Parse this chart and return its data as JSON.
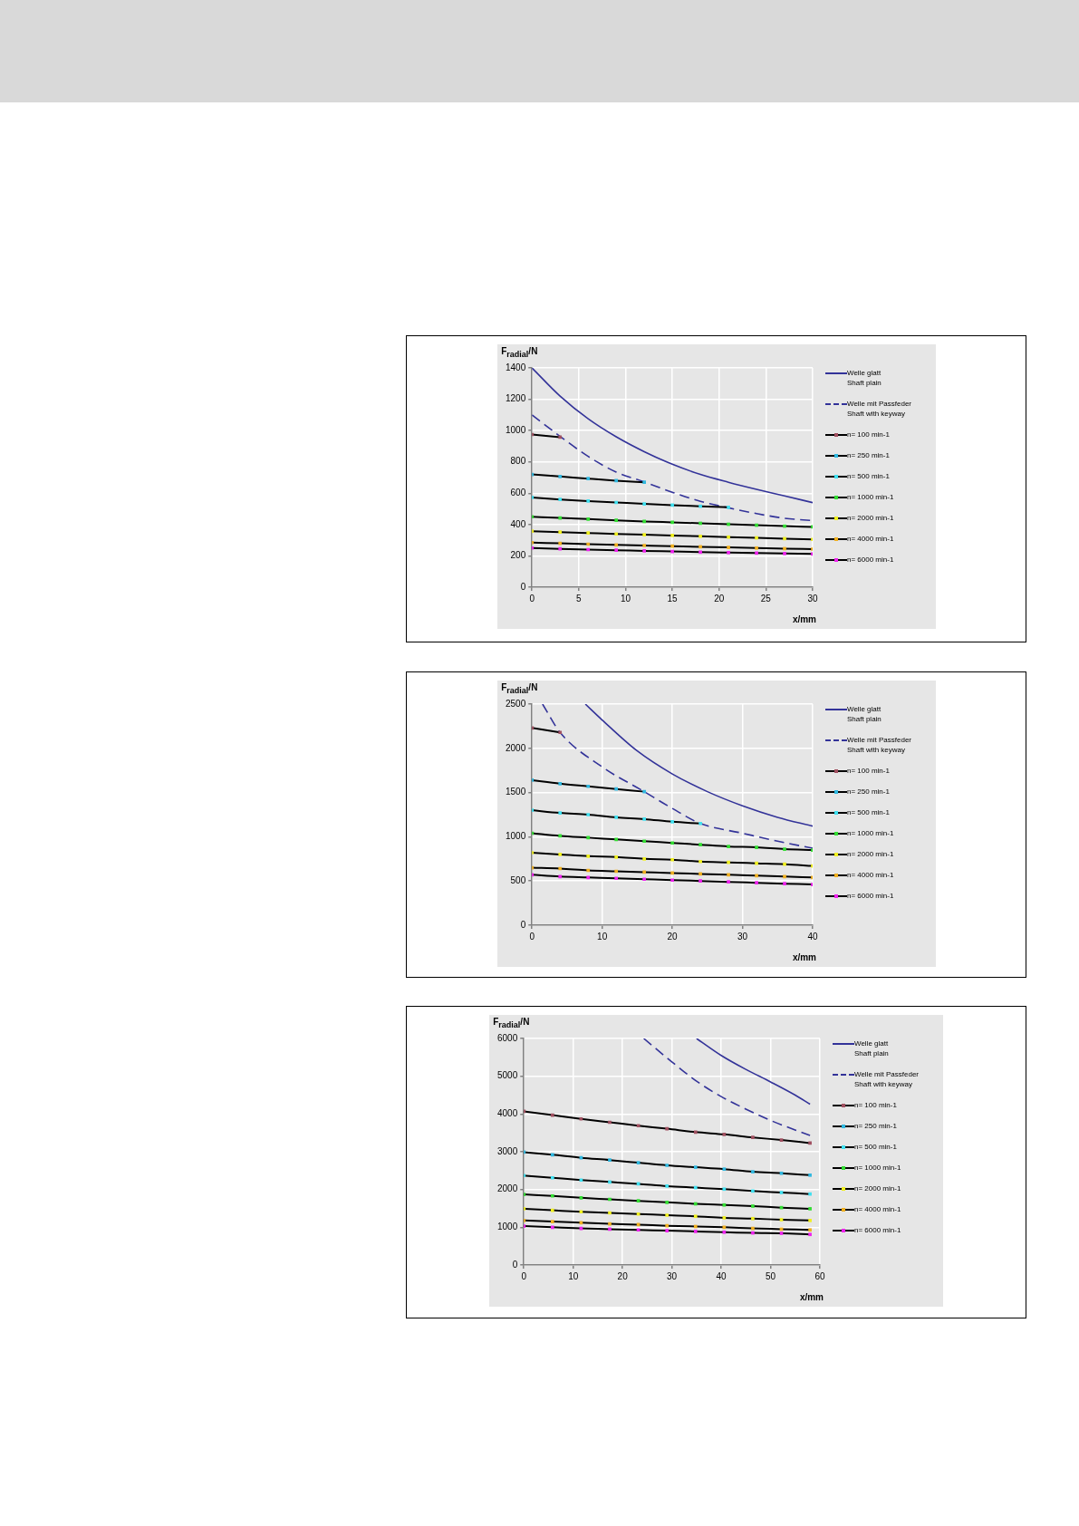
{
  "chart_data": [
    {
      "type": "line",
      "xlabel": "x/mm",
      "ylabel": "F$_{radial}$/N",
      "xlim": [
        0,
        30
      ],
      "ylim": [
        0,
        1400
      ],
      "xticks": [
        0,
        5,
        10,
        15,
        20,
        25,
        30
      ],
      "yticks": [
        0,
        200,
        400,
        600,
        800,
        1000,
        1200,
        1400
      ],
      "grid": true,
      "legend": "right",
      "series": [
        {
          "name": "Welle glatt\nShaft plain",
          "color": "#333399",
          "line_style": "solid",
          "marker": "none",
          "x": [
            0,
            3,
            6,
            9,
            12,
            15,
            18,
            21,
            24,
            27,
            30
          ],
          "values": [
            1400,
            1220,
            1075,
            960,
            865,
            785,
            720,
            670,
            625,
            583,
            540
          ]
        },
        {
          "name": "Welle mit Passfeder\nShaft with keyway",
          "color": "#333399",
          "line_style": "dashed",
          "marker": "none",
          "x": [
            0,
            3,
            6,
            9,
            12,
            15,
            18,
            21,
            24,
            27,
            30
          ],
          "values": [
            1100,
            963,
            835,
            735,
            672,
            606,
            548,
            507,
            470,
            440,
            425
          ]
        },
        {
          "name": "n= 100 min-1",
          "color": "#a05060",
          "marker": "square",
          "x": [
            0,
            3
          ],
          "values": [
            975,
            958
          ]
        },
        {
          "name": "n= 250 min-1",
          "color": "#30b8e0",
          "marker": "square",
          "x": [
            0,
            3,
            6,
            9,
            12
          ],
          "values": [
            720,
            707,
            693,
            680,
            670
          ]
        },
        {
          "name": "n= 500 min-1",
          "color": "#40e0f0",
          "marker": "square",
          "x": [
            0,
            3,
            6,
            9,
            12,
            15,
            18,
            21
          ],
          "values": [
            573,
            560,
            550,
            541,
            532,
            524,
            517,
            510
          ]
        },
        {
          "name": "n= 1000 min-1",
          "color": "#33dd33",
          "marker": "square",
          "x": [
            0,
            3,
            6,
            9,
            12,
            15,
            18,
            21,
            24,
            27,
            30
          ],
          "values": [
            450,
            442,
            435,
            427,
            420,
            414,
            408,
            402,
            396,
            390,
            385
          ]
        },
        {
          "name": "n= 2000 min-1",
          "color": "#f0f020",
          "marker": "square",
          "x": [
            0,
            3,
            6,
            9,
            12,
            15,
            18,
            21,
            24,
            27,
            30
          ],
          "values": [
            358,
            352,
            346,
            340,
            335,
            330,
            325,
            320,
            315,
            310,
            305
          ]
        },
        {
          "name": "n= 4000 min-1",
          "color": "#f0b020",
          "marker": "square",
          "x": [
            0,
            3,
            6,
            9,
            12,
            15,
            18,
            21,
            24,
            27,
            30
          ],
          "values": [
            285,
            280,
            275,
            270,
            266,
            262,
            258,
            254,
            250,
            246,
            243
          ]
        },
        {
          "name": "n= 6000 min-1",
          "color": "#ee22ee",
          "marker": "square",
          "x": [
            0,
            3,
            6,
            9,
            12,
            15,
            18,
            21,
            24,
            27,
            30
          ],
          "values": [
            250,
            245,
            240,
            236,
            232,
            228,
            224,
            221,
            218,
            215,
            212
          ]
        }
      ]
    },
    {
      "type": "line",
      "xlabel": "x/mm",
      "ylabel": "F$_{radial}$/N",
      "xlim": [
        0,
        40
      ],
      "ylim": [
        0,
        2500
      ],
      "xticks": [
        0,
        10,
        20,
        30,
        40
      ],
      "yticks": [
        0,
        500,
        1000,
        1500,
        2000,
        2500
      ],
      "grid": true,
      "legend": "right",
      "series": [
        {
          "name": "Welle glatt\nShaft plain",
          "color": "#333399",
          "line_style": "solid",
          "marker": "none",
          "x": [
            7.6,
            10,
            15,
            20,
            25,
            30,
            35,
            40
          ],
          "values": [
            2500,
            2320,
            1970,
            1710,
            1510,
            1350,
            1220,
            1120
          ]
        },
        {
          "name": "Welle mit Passfeder\nShaft with keyway",
          "color": "#333399",
          "line_style": "dashed",
          "marker": "none",
          "x": [
            1.5,
            4,
            10,
            16,
            20,
            24,
            30,
            35,
            40
          ],
          "values": [
            2500,
            2180,
            1790,
            1510,
            1320,
            1150,
            1040,
            950,
            870
          ]
        },
        {
          "name": "n= 100 min-1",
          "color": "#a05060",
          "marker": "square",
          "x": [
            0,
            4
          ],
          "values": [
            2230,
            2180
          ]
        },
        {
          "name": "n= 250 min-1",
          "color": "#30b8e0",
          "marker": "square",
          "x": [
            0,
            4,
            8,
            12,
            16
          ],
          "values": [
            1640,
            1600,
            1570,
            1540,
            1510
          ]
        },
        {
          "name": "n= 500 min-1",
          "color": "#40e0f0",
          "marker": "square",
          "x": [
            0,
            4,
            8,
            12,
            16,
            20,
            24
          ],
          "values": [
            1300,
            1270,
            1250,
            1220,
            1200,
            1170,
            1150
          ]
        },
        {
          "name": "n= 1000 min-1",
          "color": "#33dd33",
          "marker": "square",
          "x": [
            0,
            4,
            8,
            12,
            16,
            20,
            24,
            28,
            32,
            36,
            40
          ],
          "values": [
            1040,
            1010,
            990,
            970,
            950,
            930,
            910,
            890,
            880,
            860,
            850
          ]
        },
        {
          "name": "n= 2000 min-1",
          "color": "#f0f020",
          "marker": "square",
          "x": [
            0,
            4,
            8,
            12,
            16,
            20,
            24,
            28,
            32,
            36,
            40
          ],
          "values": [
            820,
            800,
            780,
            770,
            750,
            740,
            720,
            710,
            700,
            690,
            670
          ]
        },
        {
          "name": "n= 4000 min-1",
          "color": "#f0b020",
          "marker": "square",
          "x": [
            0,
            4,
            8,
            12,
            16,
            20,
            24,
            28,
            32,
            36,
            40
          ],
          "values": [
            650,
            640,
            620,
            610,
            600,
            590,
            580,
            570,
            560,
            550,
            540
          ]
        },
        {
          "name": "n= 6000 min-1",
          "color": "#ee22ee",
          "marker": "square",
          "x": [
            0,
            4,
            8,
            12,
            16,
            20,
            24,
            28,
            32,
            36,
            40
          ],
          "values": [
            570,
            550,
            540,
            530,
            520,
            510,
            500,
            490,
            480,
            470,
            460
          ]
        }
      ]
    },
    {
      "type": "line",
      "xlabel": "x/mm",
      "ylabel": "F$_{radial}$/N",
      "xlim": [
        0,
        60
      ],
      "ylim": [
        0,
        6000
      ],
      "xticks": [
        0,
        10,
        20,
        30,
        40,
        50,
        60
      ],
      "yticks": [
        0,
        1000,
        2000,
        3000,
        4000,
        5000,
        6000
      ],
      "grid": true,
      "legend": "right",
      "series": [
        {
          "name": "Welle glatt\nShaft plain",
          "color": "#333399",
          "line_style": "solid",
          "marker": "none",
          "x": [
            35,
            40,
            45,
            50,
            55,
            58
          ],
          "values": [
            6000,
            5550,
            5180,
            4850,
            4500,
            4260
          ]
        },
        {
          "name": "Welle mit Passfeder\nShaft with keyway",
          "color": "#333399",
          "line_style": "dashed",
          "marker": "none",
          "x": [
            24.3,
            30,
            35,
            40,
            45,
            50,
            58
          ],
          "values": [
            6000,
            5380,
            4870,
            4460,
            4130,
            3830,
            3430
          ]
        },
        {
          "name": "n= 100 min-1",
          "color": "#a05060",
          "marker": "square",
          "x": [
            0,
            5.8,
            11.6,
            17.4,
            23.2,
            29,
            34.8,
            40.6,
            46.4,
            52.2,
            58
          ],
          "values": [
            4070,
            3970,
            3870,
            3780,
            3690,
            3610,
            3520,
            3460,
            3380,
            3310,
            3230
          ]
        },
        {
          "name": "n= 250 min-1",
          "color": "#30b8e0",
          "marker": "square",
          "x": [
            0,
            5.8,
            11.6,
            17.4,
            23.2,
            29,
            34.8,
            40.6,
            46.4,
            52.2,
            58
          ],
          "values": [
            2990,
            2920,
            2840,
            2780,
            2710,
            2640,
            2590,
            2540,
            2470,
            2430,
            2380
          ]
        },
        {
          "name": "n= 500 min-1",
          "color": "#40e0f0",
          "marker": "square",
          "x": [
            0,
            5.8,
            11.6,
            17.4,
            23.2,
            29,
            34.8,
            40.6,
            46.4,
            52.2,
            58
          ],
          "values": [
            2370,
            2310,
            2250,
            2200,
            2150,
            2090,
            2050,
            2010,
            1960,
            1920,
            1880
          ]
        },
        {
          "name": "n= 1000 min-1",
          "color": "#33dd33",
          "marker": "square",
          "x": [
            0,
            5.8,
            11.6,
            17.4,
            23.2,
            29,
            34.8,
            40.6,
            46.4,
            52.2,
            58
          ],
          "values": [
            1870,
            1830,
            1780,
            1740,
            1700,
            1660,
            1620,
            1590,
            1560,
            1520,
            1490
          ]
        },
        {
          "name": "n= 2000 min-1",
          "color": "#f0f020",
          "marker": "square",
          "x": [
            0,
            5.8,
            11.6,
            17.4,
            23.2,
            29,
            34.8,
            40.6,
            46.4,
            52.2,
            58
          ],
          "values": [
            1490,
            1450,
            1410,
            1380,
            1350,
            1320,
            1290,
            1250,
            1230,
            1200,
            1180
          ]
        },
        {
          "name": "n= 4000 min-1",
          "color": "#f0b020",
          "marker": "square",
          "x": [
            0,
            5.8,
            11.6,
            17.4,
            23.2,
            29,
            34.8,
            40.6,
            46.4,
            52.2,
            58
          ],
          "values": [
            1180,
            1150,
            1120,
            1090,
            1070,
            1040,
            1020,
            1000,
            970,
            950,
            930
          ]
        },
        {
          "name": "n= 6000 min-1",
          "color": "#ee22ee",
          "marker": "square",
          "x": [
            0,
            5.8,
            11.6,
            17.4,
            23.2,
            29,
            34.8,
            40.6,
            46.4,
            52.2,
            58
          ],
          "values": [
            1030,
            1000,
            970,
            950,
            930,
            910,
            890,
            870,
            850,
            840,
            810
          ]
        }
      ]
    }
  ]
}
